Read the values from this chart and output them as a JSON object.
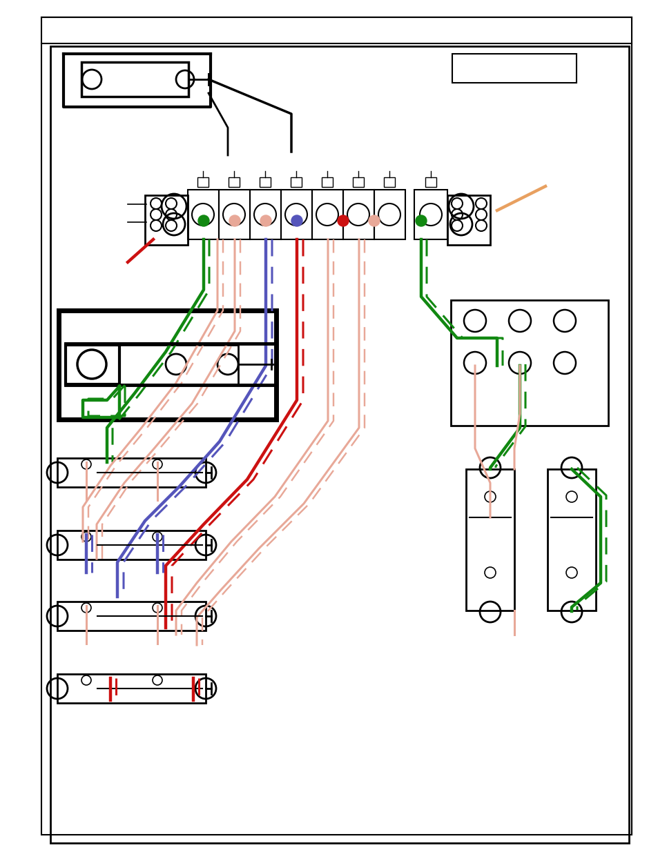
{
  "colors": {
    "black": "#000000",
    "red": "#cc1111",
    "green": "#118811",
    "blue": "#5555bb",
    "salmon": "#e8a898",
    "orange": "#e8a060"
  },
  "lw_wire": 2.2,
  "lw_thick": 3.2,
  "lw_border": 2.0
}
